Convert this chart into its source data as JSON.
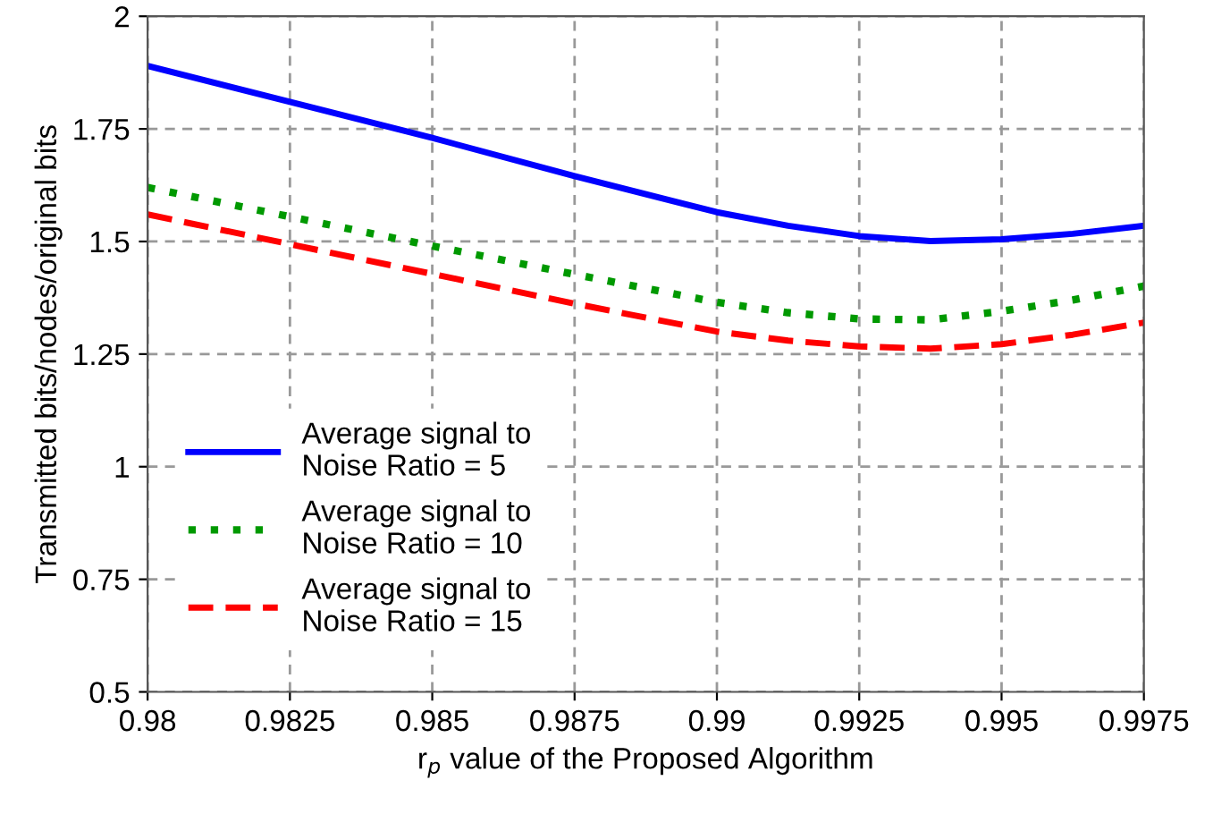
{
  "chart_data": {
    "type": "line",
    "xlabel": "r$_{p}$ value of the Proposed Algorithm",
    "ylabel": "Transmitted bits/nodes/original bits",
    "x": [
      0.98,
      0.9825,
      0.985,
      0.9875,
      0.99,
      0.99125,
      0.9925,
      0.99375,
      0.995,
      0.99625,
      0.9975
    ],
    "series": [
      {
        "name": "Average signal to\nNoise Ratio = 5",
        "color": "#0000ff",
        "line_style": "solid",
        "values": [
          1.89,
          1.81,
          1.73,
          1.645,
          1.565,
          1.535,
          1.512,
          1.501,
          1.505,
          1.517,
          1.535
        ]
      },
      {
        "name": "Average signal to\nNoise Ratio = 10",
        "color": "#009900",
        "line_style": "dotted",
        "values": [
          1.62,
          1.555,
          1.49,
          1.427,
          1.365,
          1.342,
          1.328,
          1.326,
          1.345,
          1.37,
          1.401
        ]
      },
      {
        "name": "Average signal to\nNoise Ratio = 15",
        "color": "#ff0000",
        "line_style": "dashed",
        "values": [
          1.56,
          1.494,
          1.428,
          1.362,
          1.3,
          1.28,
          1.267,
          1.262,
          1.272,
          1.293,
          1.32
        ]
      }
    ],
    "xlim": [
      0.98,
      0.9975
    ],
    "ylim": [
      0.5,
      2
    ],
    "xticks": [
      0.98,
      0.9825,
      0.985,
      0.9875,
      0.99,
      0.9925,
      0.995,
      0.9975
    ],
    "yticks": [
      0.5,
      0.75,
      1,
      1.25,
      1.5,
      1.75,
      2
    ],
    "grid": true,
    "legend": "bottom left",
    "marker": "none"
  }
}
